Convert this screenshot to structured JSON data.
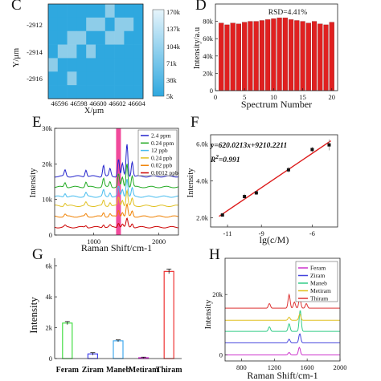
{
  "panels": {
    "c": {
      "letter": "C",
      "type": "heatmap",
      "xlabel": "X/μm",
      "ylabel": "Y/μm",
      "xticks": [
        "46596",
        "46598",
        "46600",
        "46602",
        "46604"
      ],
      "yticks": [
        "-2912",
        "-2914",
        "-2916"
      ],
      "colorbar_ticks": [
        "170k",
        "137k",
        "104k",
        "71k",
        "38k",
        "5k"
      ],
      "colors": {
        "low": "#2fa8df",
        "high": "#e6f4fb"
      }
    },
    "d": {
      "letter": "D",
      "annotation": "RSD=4.41%"
    },
    "e": {
      "letter": "E",
      "legend": [
        "2.4 ppm",
        "0.24 ppm",
        "12 ppb",
        "0.24 ppb",
        "0.02 ppb",
        "0.0012 ppb"
      ]
    },
    "f": {
      "letter": "F",
      "equation": "y=620.0213x+9210.2211",
      "r2_label": "R",
      "r2_exp": "2",
      "r2_value": "=0.991"
    },
    "g": {
      "letter": "G"
    },
    "h": {
      "letter": "H",
      "legend": [
        "Feram",
        "Ziram",
        "Maneb",
        "Metiram",
        "Thiram"
      ]
    }
  },
  "chart_data": [
    {
      "panel": "C",
      "type": "heatmap",
      "xlabel": "X/μm",
      "ylabel": "Y/μm",
      "xlim": [
        46595,
        46605.5
      ],
      "ylim": [
        -2917.5,
        -2910.5
      ],
      "color_range": [
        5000,
        170000
      ],
      "grid_rows": 7,
      "grid_cols": 10,
      "values_rank": [
        [
          0,
          0,
          0,
          0,
          0,
          0,
          1,
          0,
          0,
          0
        ],
        [
          0,
          0,
          0,
          0,
          1,
          1,
          0,
          1,
          1,
          0
        ],
        [
          0,
          0,
          1,
          1,
          0,
          0,
          1,
          1,
          0,
          0
        ],
        [
          0,
          1,
          1,
          0,
          1,
          0,
          0,
          0,
          0,
          0
        ],
        [
          1,
          0,
          0,
          0,
          0,
          0,
          0,
          0,
          0,
          0
        ],
        [
          0,
          0,
          1,
          0,
          0,
          0,
          0,
          0,
          0,
          0
        ],
        [
          0,
          0,
          0,
          0,
          0,
          0,
          0,
          0,
          0,
          0
        ]
      ]
    },
    {
      "panel": "D",
      "type": "bar",
      "xlabel": "Spectrum Number",
      "ylabel": "Intensity/a.u",
      "x": [
        1,
        2,
        3,
        4,
        5,
        6,
        7,
        8,
        9,
        10,
        11,
        12,
        13,
        14,
        15,
        16,
        17,
        18,
        19,
        20
      ],
      "values": [
        78000,
        76000,
        78000,
        77000,
        79000,
        80000,
        80000,
        81000,
        82000,
        83000,
        84000,
        84000,
        82000,
        81000,
        80000,
        78000,
        80000,
        77000,
        76000,
        79000
      ],
      "ylim": [
        0,
        100000
      ],
      "xlim": [
        0,
        21
      ],
      "yticks": [
        "0",
        "20k",
        "40k",
        "60k",
        "80k"
      ],
      "xticks": [
        "0",
        "5",
        "10",
        "15",
        "20"
      ],
      "annotation": "RSD=4.41%",
      "color": "#e02020"
    },
    {
      "panel": "E",
      "type": "line",
      "xlabel": "Raman Shift/cm-1",
      "ylabel": "Intensity",
      "xlim": [
        400,
        2300
      ],
      "ylim": [
        0,
        30000
      ],
      "xticks": [
        "1000",
        "2000"
      ],
      "yticks": [
        "0",
        "10k",
        "20k",
        "30k"
      ],
      "highlight_band": 1380,
      "series": [
        {
          "name": "2.4 ppm",
          "color": "#2222cc",
          "baseline": 16500
        },
        {
          "name": "0.24 ppm",
          "color": "#22aa22",
          "baseline": 13500
        },
        {
          "name": "12 ppb",
          "color": "#44bbee",
          "baseline": 10800
        },
        {
          "name": "0.24 ppb",
          "color": "#e0c020",
          "baseline": 8200
        },
        {
          "name": "0.02 ppb",
          "color": "#f08000",
          "baseline": 5200
        },
        {
          "name": "0.0012 ppb",
          "color": "#cc0000",
          "baseline": 2200
        }
      ]
    },
    {
      "panel": "F",
      "type": "scatter",
      "xlabel": "lg(c/M)",
      "ylabel": "Intensity",
      "xlim": [
        -12,
        -4.5
      ],
      "ylim": [
        1500,
        6500
      ],
      "xticks": [
        "-11",
        "-9",
        "-6"
      ],
      "yticks": [
        "2.0k",
        "4.0k",
        "6.0k"
      ],
      "points": [
        {
          "x": -11.3,
          "y": 2150,
          "err": 80
        },
        {
          "x": -10.0,
          "y": 3150,
          "err": 150
        },
        {
          "x": -9.3,
          "y": 3350,
          "err": 120
        },
        {
          "x": -7.4,
          "y": 4600,
          "err": 150
        },
        {
          "x": -6.0,
          "y": 5700,
          "err": 150
        },
        {
          "x": -5.0,
          "y": 5950,
          "err": 300
        }
      ],
      "fit": {
        "slope": 620.0213,
        "intercept": 9210.2211,
        "r2": 0.991
      }
    },
    {
      "panel": "G",
      "type": "bar",
      "xlabel": "",
      "ylabel": "Intensity",
      "categories": [
        "Feram",
        "Ziram",
        "Maneb",
        "Metiram",
        "Thiram"
      ],
      "values": [
        2300,
        300,
        1150,
        60,
        5650
      ],
      "errors": [
        100,
        80,
        60,
        30,
        150
      ],
      "colors": [
        "#44dd44",
        "#4444ee",
        "#44aaee",
        "#dd44dd",
        "#ee3333"
      ],
      "ylim": [
        0,
        6500
      ],
      "yticks": [
        "0",
        "2k",
        "4k",
        "6k"
      ]
    },
    {
      "panel": "H",
      "type": "line",
      "xlabel": "Raman Shift/cm-1",
      "ylabel": "Intensity",
      "xlim": [
        600,
        2000
      ],
      "ylim": [
        -2000,
        32000
      ],
      "xticks": [
        "800",
        "1200",
        "1600",
        "2000"
      ],
      "yticks": [
        "0",
        "20k"
      ],
      "series": [
        {
          "name": "Feram",
          "color": "#cc33cc",
          "baseline": 0
        },
        {
          "name": "Ziram",
          "color": "#4444dd",
          "baseline": 4000
        },
        {
          "name": "Maneb",
          "color": "#33cc88",
          "baseline": 7800
        },
        {
          "name": "Metiram",
          "color": "#e0c020",
          "baseline": 11500
        },
        {
          "name": "Thiram",
          "color": "#dd3333",
          "baseline": 15500
        }
      ]
    }
  ]
}
